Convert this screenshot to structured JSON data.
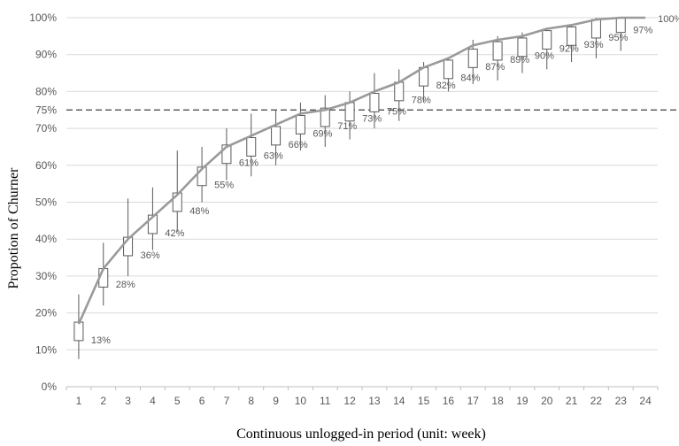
{
  "chart_data": {
    "type": "line",
    "xlabel": "Continuous unlogged-in period (unit: week)",
    "ylabel": "Propotion of Churner",
    "ylim": [
      0,
      100
    ],
    "y_ticks": [
      "0%",
      "10%",
      "20%",
      "30%",
      "40%",
      "50%",
      "60%",
      "70%",
      "75%",
      "80%",
      "90%",
      "100%"
    ],
    "reference_line": {
      "value": 75,
      "style": "dashed"
    },
    "categories": [
      "1",
      "2",
      "3",
      "4",
      "5",
      "6",
      "7",
      "8",
      "9",
      "10",
      "11",
      "12",
      "13",
      "14",
      "15",
      "16",
      "17",
      "18",
      "19",
      "20",
      "21",
      "22",
      "23",
      "24"
    ],
    "line_values": [
      17,
      32,
      40,
      46,
      52,
      59,
      65,
      68,
      71,
      74,
      75,
      77,
      80,
      82.5,
      86.5,
      89,
      92.5,
      94,
      95,
      97,
      98,
      99.5,
      100,
      100
    ],
    "data_labels": [
      "13%",
      "28%",
      "36%",
      "42%",
      "48%",
      "55%",
      "61%",
      "63%",
      "66%",
      "69%",
      "71%",
      "73%",
      "75%",
      "78%",
      "82%",
      "84%",
      "87%",
      "89%",
      "90%",
      "92%",
      "93%",
      "95%",
      "97%",
      "100%"
    ],
    "label_values": [
      13,
      28,
      36,
      42,
      48,
      55,
      61,
      63,
      66,
      69,
      71,
      73,
      75,
      78,
      82,
      84,
      87,
      89,
      90,
      92,
      93,
      95,
      97,
      100
    ],
    "boxes": [
      {
        "low": 7.5,
        "q1": 12.5,
        "q3": 17.5,
        "high": 25
      },
      {
        "low": 22,
        "q1": 27,
        "q3": 32,
        "high": 39
      },
      {
        "low": 30,
        "q1": 35.5,
        "q3": 40.5,
        "high": 51
      },
      {
        "low": 37,
        "q1": 41.5,
        "q3": 46.5,
        "high": 54
      },
      {
        "low": 42,
        "q1": 47.5,
        "q3": 52.5,
        "high": 64
      },
      {
        "low": 50,
        "q1": 54.5,
        "q3": 59.5,
        "high": 65
      },
      {
        "low": 56,
        "q1": 60.5,
        "q3": 65.5,
        "high": 70
      },
      {
        "low": 57,
        "q1": 62.5,
        "q3": 67.5,
        "high": 74
      },
      {
        "low": 60,
        "q1": 65.5,
        "q3": 70.5,
        "high": 75
      },
      {
        "low": 64,
        "q1": 68.5,
        "q3": 73.5,
        "high": 77
      },
      {
        "low": 65,
        "q1": 70.5,
        "q3": 75.5,
        "high": 79
      },
      {
        "low": 67,
        "q1": 72,
        "q3": 77,
        "high": 80
      },
      {
        "low": 70,
        "q1": 74.5,
        "q3": 79.5,
        "high": 85
      },
      {
        "low": 72,
        "q1": 77.5,
        "q3": 82.5,
        "high": 86
      },
      {
        "low": 77,
        "q1": 81.5,
        "q3": 86.5,
        "high": 88
      },
      {
        "low": 80,
        "q1": 83.5,
        "q3": 88.5,
        "high": 89
      },
      {
        "low": 82,
        "q1": 86.5,
        "q3": 91.5,
        "high": 94
      },
      {
        "low": 83,
        "q1": 88.5,
        "q3": 93.5,
        "high": 95
      },
      {
        "low": 85,
        "q1": 89.5,
        "q3": 94.5,
        "high": 96
      },
      {
        "low": 86,
        "q1": 91.5,
        "q3": 96.5,
        "high": 97
      },
      {
        "low": 88,
        "q1": 92.5,
        "q3": 97.5,
        "high": 98
      },
      {
        "low": 89,
        "q1": 94.5,
        "q3": 99.5,
        "high": 100
      },
      {
        "low": 91,
        "q1": 96,
        "q3": 100,
        "high": 100
      },
      {
        "low": 100,
        "q1": 100,
        "q3": 100,
        "high": 100
      }
    ],
    "grid": true,
    "colors": {
      "line": "#9a9a9a",
      "box": "#595959",
      "grid": "#d9d9d9",
      "reference": "#404040"
    }
  }
}
